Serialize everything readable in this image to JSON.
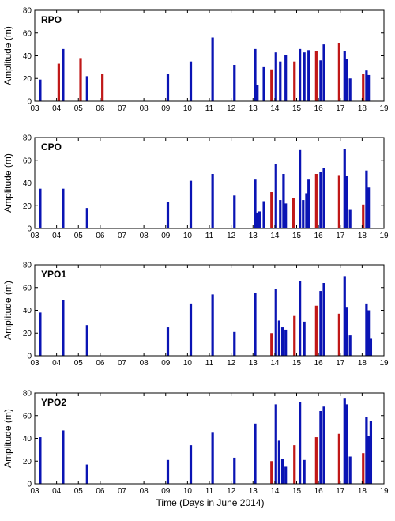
{
  "figure": {
    "xlabel": "Time (Days in June 2014)",
    "ylabel": "Amplitude (m)"
  },
  "chart_data": [
    {
      "type": "bar",
      "title": "RPO",
      "ylabel": "Amplitude (m)",
      "xlim": [
        3,
        19
      ],
      "ylim": [
        0,
        80
      ],
      "xticks": [
        "03",
        "04",
        "05",
        "06",
        "07",
        "08",
        "09",
        "10",
        "11",
        "12",
        "13",
        "14",
        "15",
        "16",
        "17",
        "18",
        "19"
      ],
      "yticks": [
        0,
        20,
        40,
        60,
        80
      ],
      "grid": false,
      "colors": {
        "blue": "#0a14b4",
        "red": "#c01818"
      },
      "bars": [
        {
          "x": 3.25,
          "y": 19,
          "color": "blue"
        },
        {
          "x": 4.1,
          "y": 33,
          "color": "red"
        },
        {
          "x": 4.3,
          "y": 46,
          "color": "blue"
        },
        {
          "x": 5.1,
          "y": 38,
          "color": "red"
        },
        {
          "x": 5.4,
          "y": 22,
          "color": "blue"
        },
        {
          "x": 6.1,
          "y": 24,
          "color": "red"
        },
        {
          "x": 9.1,
          "y": 24,
          "color": "blue"
        },
        {
          "x": 10.15,
          "y": 35,
          "color": "blue"
        },
        {
          "x": 11.15,
          "y": 56,
          "color": "blue"
        },
        {
          "x": 12.15,
          "y": 32,
          "color": "blue"
        },
        {
          "x": 13.1,
          "y": 46,
          "color": "blue"
        },
        {
          "x": 13.2,
          "y": 14,
          "color": "blue"
        },
        {
          "x": 13.5,
          "y": 30,
          "color": "blue"
        },
        {
          "x": 13.85,
          "y": 28,
          "color": "red"
        },
        {
          "x": 14.05,
          "y": 43,
          "color": "blue"
        },
        {
          "x": 14.25,
          "y": 35,
          "color": "blue"
        },
        {
          "x": 14.5,
          "y": 41,
          "color": "blue"
        },
        {
          "x": 14.9,
          "y": 35,
          "color": "red"
        },
        {
          "x": 15.15,
          "y": 46,
          "color": "blue"
        },
        {
          "x": 15.35,
          "y": 43,
          "color": "blue"
        },
        {
          "x": 15.55,
          "y": 45,
          "color": "blue"
        },
        {
          "x": 15.9,
          "y": 44,
          "color": "red"
        },
        {
          "x": 16.1,
          "y": 36,
          "color": "blue"
        },
        {
          "x": 16.25,
          "y": 50,
          "color": "blue"
        },
        {
          "x": 16.95,
          "y": 51,
          "color": "red"
        },
        {
          "x": 17.2,
          "y": 44,
          "color": "blue"
        },
        {
          "x": 17.3,
          "y": 37,
          "color": "blue"
        },
        {
          "x": 17.45,
          "y": 20,
          "color": "blue"
        },
        {
          "x": 18.05,
          "y": 24,
          "color": "red"
        },
        {
          "x": 18.2,
          "y": 27,
          "color": "blue"
        },
        {
          "x": 18.3,
          "y": 23,
          "color": "blue"
        }
      ]
    },
    {
      "type": "bar",
      "title": "CPO",
      "ylabel": "Amplitude (m)",
      "xlim": [
        3,
        19
      ],
      "ylim": [
        0,
        80
      ],
      "xticks": [
        "03",
        "04",
        "05",
        "06",
        "07",
        "08",
        "09",
        "10",
        "11",
        "12",
        "13",
        "14",
        "15",
        "16",
        "17",
        "18",
        "19"
      ],
      "yticks": [
        0,
        20,
        40,
        60,
        80
      ],
      "grid": false,
      "colors": {
        "blue": "#0a14b4",
        "red": "#c01818"
      },
      "bars": [
        {
          "x": 3.25,
          "y": 35,
          "color": "blue"
        },
        {
          "x": 4.3,
          "y": 35,
          "color": "blue"
        },
        {
          "x": 5.4,
          "y": 18,
          "color": "blue"
        },
        {
          "x": 9.1,
          "y": 23,
          "color": "blue"
        },
        {
          "x": 10.15,
          "y": 42,
          "color": "blue"
        },
        {
          "x": 11.15,
          "y": 48,
          "color": "blue"
        },
        {
          "x": 12.15,
          "y": 29,
          "color": "blue"
        },
        {
          "x": 13.1,
          "y": 43,
          "color": "blue"
        },
        {
          "x": 13.2,
          "y": 14,
          "color": "blue"
        },
        {
          "x": 13.3,
          "y": 15,
          "color": "blue"
        },
        {
          "x": 13.5,
          "y": 24,
          "color": "blue"
        },
        {
          "x": 13.85,
          "y": 32,
          "color": "red"
        },
        {
          "x": 14.05,
          "y": 57,
          "color": "blue"
        },
        {
          "x": 14.25,
          "y": 25,
          "color": "blue"
        },
        {
          "x": 14.4,
          "y": 48,
          "color": "blue"
        },
        {
          "x": 14.5,
          "y": 22,
          "color": "blue"
        },
        {
          "x": 14.85,
          "y": 27,
          "color": "red"
        },
        {
          "x": 15.15,
          "y": 69,
          "color": "blue"
        },
        {
          "x": 15.3,
          "y": 25,
          "color": "blue"
        },
        {
          "x": 15.45,
          "y": 31,
          "color": "blue"
        },
        {
          "x": 15.55,
          "y": 43,
          "color": "blue"
        },
        {
          "x": 15.9,
          "y": 48,
          "color": "red"
        },
        {
          "x": 16.1,
          "y": 50,
          "color": "blue"
        },
        {
          "x": 16.25,
          "y": 53,
          "color": "blue"
        },
        {
          "x": 16.95,
          "y": 47,
          "color": "red"
        },
        {
          "x": 17.2,
          "y": 70,
          "color": "blue"
        },
        {
          "x": 17.3,
          "y": 46,
          "color": "blue"
        },
        {
          "x": 17.45,
          "y": 17,
          "color": "blue"
        },
        {
          "x": 18.05,
          "y": 21,
          "color": "red"
        },
        {
          "x": 18.2,
          "y": 51,
          "color": "blue"
        },
        {
          "x": 18.3,
          "y": 36,
          "color": "blue"
        }
      ]
    },
    {
      "type": "bar",
      "title": "YPO1",
      "ylabel": "Amplitude (m)",
      "xlim": [
        3,
        19
      ],
      "ylim": [
        0,
        80
      ],
      "xticks": [
        "03",
        "04",
        "05",
        "06",
        "07",
        "08",
        "09",
        "10",
        "11",
        "12",
        "13",
        "14",
        "15",
        "16",
        "17",
        "18",
        "19"
      ],
      "yticks": [
        0,
        20,
        40,
        60,
        80
      ],
      "grid": false,
      "colors": {
        "blue": "#0a14b4",
        "red": "#c01818"
      },
      "bars": [
        {
          "x": 3.25,
          "y": 38,
          "color": "blue"
        },
        {
          "x": 4.3,
          "y": 49,
          "color": "blue"
        },
        {
          "x": 5.4,
          "y": 27,
          "color": "blue"
        },
        {
          "x": 9.1,
          "y": 25,
          "color": "blue"
        },
        {
          "x": 10.15,
          "y": 46,
          "color": "blue"
        },
        {
          "x": 11.15,
          "y": 54,
          "color": "blue"
        },
        {
          "x": 12.15,
          "y": 21,
          "color": "blue"
        },
        {
          "x": 13.1,
          "y": 55,
          "color": "blue"
        },
        {
          "x": 13.85,
          "y": 20,
          "color": "red"
        },
        {
          "x": 14.05,
          "y": 59,
          "color": "blue"
        },
        {
          "x": 14.2,
          "y": 31,
          "color": "blue"
        },
        {
          "x": 14.35,
          "y": 25,
          "color": "blue"
        },
        {
          "x": 14.5,
          "y": 23,
          "color": "blue"
        },
        {
          "x": 14.9,
          "y": 35,
          "color": "red"
        },
        {
          "x": 15.15,
          "y": 66,
          "color": "blue"
        },
        {
          "x": 15.35,
          "y": 30,
          "color": "blue"
        },
        {
          "x": 15.9,
          "y": 44,
          "color": "red"
        },
        {
          "x": 16.1,
          "y": 57,
          "color": "blue"
        },
        {
          "x": 16.25,
          "y": 64,
          "color": "blue"
        },
        {
          "x": 16.95,
          "y": 37,
          "color": "red"
        },
        {
          "x": 17.2,
          "y": 70,
          "color": "blue"
        },
        {
          "x": 17.3,
          "y": 43,
          "color": "blue"
        },
        {
          "x": 17.45,
          "y": 18,
          "color": "blue"
        },
        {
          "x": 18.2,
          "y": 46,
          "color": "blue"
        },
        {
          "x": 18.3,
          "y": 40,
          "color": "blue"
        },
        {
          "x": 18.4,
          "y": 15,
          "color": "blue"
        }
      ]
    },
    {
      "type": "bar",
      "title": "YPO2",
      "ylabel": "Amplitude (m)",
      "xlim": [
        3,
        19
      ],
      "ylim": [
        0,
        80
      ],
      "xticks": [
        "03",
        "04",
        "05",
        "06",
        "07",
        "08",
        "09",
        "10",
        "11",
        "12",
        "13",
        "14",
        "15",
        "16",
        "17",
        "18",
        "19"
      ],
      "yticks": [
        0,
        20,
        40,
        60,
        80
      ],
      "grid": false,
      "colors": {
        "blue": "#0a14b4",
        "red": "#c01818"
      },
      "bars": [
        {
          "x": 3.25,
          "y": 41,
          "color": "blue"
        },
        {
          "x": 4.3,
          "y": 47,
          "color": "blue"
        },
        {
          "x": 5.4,
          "y": 17,
          "color": "blue"
        },
        {
          "x": 9.1,
          "y": 21,
          "color": "blue"
        },
        {
          "x": 10.15,
          "y": 34,
          "color": "blue"
        },
        {
          "x": 11.15,
          "y": 45,
          "color": "blue"
        },
        {
          "x": 12.15,
          "y": 23,
          "color": "blue"
        },
        {
          "x": 13.1,
          "y": 53,
          "color": "blue"
        },
        {
          "x": 13.85,
          "y": 20,
          "color": "red"
        },
        {
          "x": 14.05,
          "y": 70,
          "color": "blue"
        },
        {
          "x": 14.2,
          "y": 38,
          "color": "blue"
        },
        {
          "x": 14.35,
          "y": 22,
          "color": "blue"
        },
        {
          "x": 14.5,
          "y": 15,
          "color": "blue"
        },
        {
          "x": 14.9,
          "y": 34,
          "color": "red"
        },
        {
          "x": 15.15,
          "y": 72,
          "color": "blue"
        },
        {
          "x": 15.35,
          "y": 21,
          "color": "blue"
        },
        {
          "x": 15.9,
          "y": 41,
          "color": "red"
        },
        {
          "x": 16.1,
          "y": 64,
          "color": "blue"
        },
        {
          "x": 16.25,
          "y": 68,
          "color": "blue"
        },
        {
          "x": 16.95,
          "y": 44,
          "color": "red"
        },
        {
          "x": 17.2,
          "y": 75,
          "color": "blue"
        },
        {
          "x": 17.3,
          "y": 70,
          "color": "blue"
        },
        {
          "x": 17.45,
          "y": 24,
          "color": "blue"
        },
        {
          "x": 18.05,
          "y": 27,
          "color": "red"
        },
        {
          "x": 18.2,
          "y": 59,
          "color": "blue"
        },
        {
          "x": 18.3,
          "y": 42,
          "color": "blue"
        },
        {
          "x": 18.4,
          "y": 55,
          "color": "blue"
        }
      ]
    }
  ]
}
